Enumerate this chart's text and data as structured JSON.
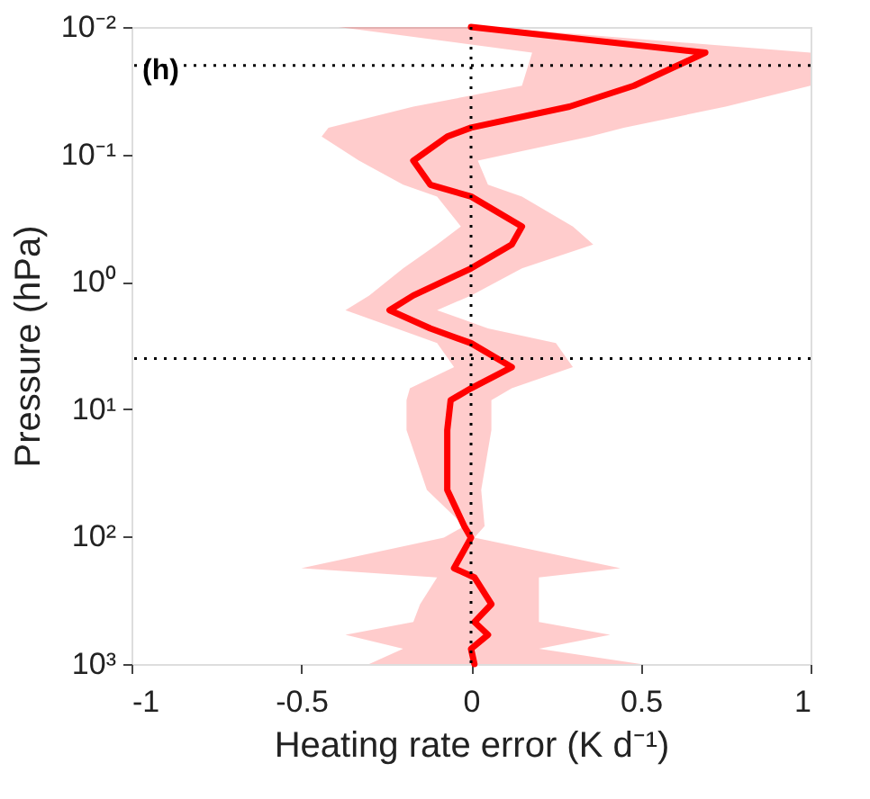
{
  "chart_data": {
    "type": "line",
    "xlabel": "Heating rate error (K d⁻¹)",
    "ylabel": "Pressure (hPa)",
    "annotations": [
      "(h)"
    ],
    "x": [
      0.01,
      0.0159,
      0.0289,
      0.0422,
      0.0617,
      0.0724,
      0.112,
      0.173,
      0.214,
      0.368,
      0.509,
      0.785,
      1.28,
      1.67,
      2.32,
      3.03,
      4.68,
      6.85,
      8.5,
      14.6,
      43,
      82.6,
      102,
      177,
      209,
      339,
      468,
      589,
      760,
      1000
    ],
    "series": [
      {
        "color": "#ff0000",
        "values": [
          0,
          0.69,
          0.48,
          0.29,
          0,
          -0.07,
          -0.17,
          -0.12,
          0,
          0.15,
          0.12,
          0,
          -0.17,
          -0.24,
          -0.12,
          0,
          0.12,
          0,
          -0.06,
          -0.07,
          -0.07,
          -0.02,
          0,
          -0.05,
          0.01,
          0.06,
          0.01,
          0.05,
          0,
          0.01
        ],
        "lower": [
          -0.39,
          0.18,
          0.15,
          -0.17,
          -0.42,
          -0.44,
          -0.33,
          -0.2,
          -0.1,
          -0.03,
          -0.1,
          -0.2,
          -0.3,
          -0.37,
          -0.22,
          -0.1,
          -0.05,
          -0.18,
          -0.19,
          -0.19,
          -0.13,
          -0.02,
          -0.08,
          -0.5,
          -0.1,
          -0.15,
          -0.17,
          -0.37,
          -0.2,
          -0.3
        ],
        "upper": [
          0.05,
          1,
          1,
          0.75,
          0.45,
          0.35,
          0.02,
          0.05,
          0.15,
          0.3,
          0.36,
          0.15,
          0,
          -0.1,
          0.05,
          0.25,
          0.3,
          0.12,
          0.06,
          0.06,
          0.03,
          0.04,
          0.01,
          0.44,
          0.2,
          0.2,
          0.2,
          0.41,
          0.2,
          0.5
        ]
      }
    ],
    "orientation": "horizontal",
    "xlim": [
      -1,
      1
    ],
    "xticks": [
      -1,
      -0.5,
      0,
      0.5,
      1
    ],
    "ylim": [
      1000,
      0.01
    ],
    "yticks": [
      {
        "value": 0.01,
        "label": "10⁻²"
      },
      {
        "value": 0.1,
        "label": "10⁻¹"
      },
      {
        "value": 1,
        "label": "10⁰"
      },
      {
        "value": 10,
        "label": "10¹"
      },
      {
        "value": 100,
        "label": "10²"
      },
      {
        "value": 1000,
        "label": "10³"
      }
    ],
    "log": "y",
    "grid": false,
    "ref_lines": [
      {
        "axis": "x",
        "value": 0,
        "color": "#000000",
        "line_style": "dotted"
      },
      {
        "axis": "y",
        "value": 0.02,
        "color": "#000000",
        "line_style": "dotted"
      },
      {
        "axis": "y",
        "value": 4,
        "color": "#000000",
        "line_style": "dotted"
      }
    ]
  }
}
